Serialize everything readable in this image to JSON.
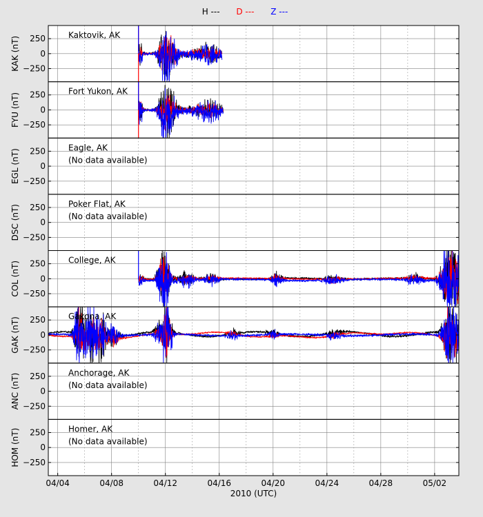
{
  "legend": [
    {
      "label": "H ---",
      "color": "#000000"
    },
    {
      "label": "D ---",
      "color": "#ff0000"
    },
    {
      "label": "Z ---",
      "color": "#0000ff"
    }
  ],
  "xlabel": "2010 (UTC)",
  "colors": {
    "H": "#000000",
    "D": "#ff0000",
    "Z": "#0000ff",
    "grid": "#808080"
  },
  "chart_data": {
    "type": "line",
    "x_ticks": [
      "04/04",
      "04/08",
      "04/12",
      "04/16",
      "04/20",
      "04/24",
      "04/28",
      "05/02"
    ],
    "x_range_days": [
      -0.7,
      29.8
    ],
    "grid": true,
    "series_names": [
      "H",
      "D",
      "Z"
    ],
    "panels": [
      {
        "ylabel": "KAK (nT)",
        "station": "Kaktovik, AK",
        "note": "",
        "data_start": 6.0,
        "data_end": 12.2,
        "yticks": [
          250,
          0,
          -250
        ]
      },
      {
        "ylabel": "FYU (nT)",
        "station": "Fort Yukon, AK",
        "note": "",
        "data_start": 6.0,
        "data_end": 12.3,
        "yticks": [
          250,
          0,
          -250
        ]
      },
      {
        "ylabel": "EGL (nT)",
        "station": "Eagle, AK",
        "note": "(No data available)",
        "data_start": null,
        "data_end": null,
        "yticks": [
          250,
          0,
          -250
        ]
      },
      {
        "ylabel": "DSC (nT)",
        "station": "Poker Flat, AK",
        "note": "(No data available)",
        "data_start": null,
        "data_end": null,
        "yticks": [
          250,
          0,
          -250
        ]
      },
      {
        "ylabel": "COL (nT)",
        "station": "College, AK",
        "note": "",
        "data_start": 6.0,
        "data_end": 29.8,
        "yticks": [
          250,
          0,
          -250
        ]
      },
      {
        "ylabel": "GAK (nT)",
        "station": "Gakona, AK",
        "note": "",
        "data_start": -0.7,
        "data_end": 29.8,
        "yticks": [
          250,
          0,
          -250
        ]
      },
      {
        "ylabel": "ANC (nT)",
        "station": "Anchorage, AK",
        "note": "(No data available)",
        "data_start": null,
        "data_end": null,
        "yticks": [
          250,
          0,
          -250
        ]
      },
      {
        "ylabel": "HOM (nT)",
        "station": "Homer, AK",
        "note": "(No data available)",
        "data_start": null,
        "data_end": null,
        "yticks": [
          250,
          0,
          -250
        ]
      }
    ]
  }
}
